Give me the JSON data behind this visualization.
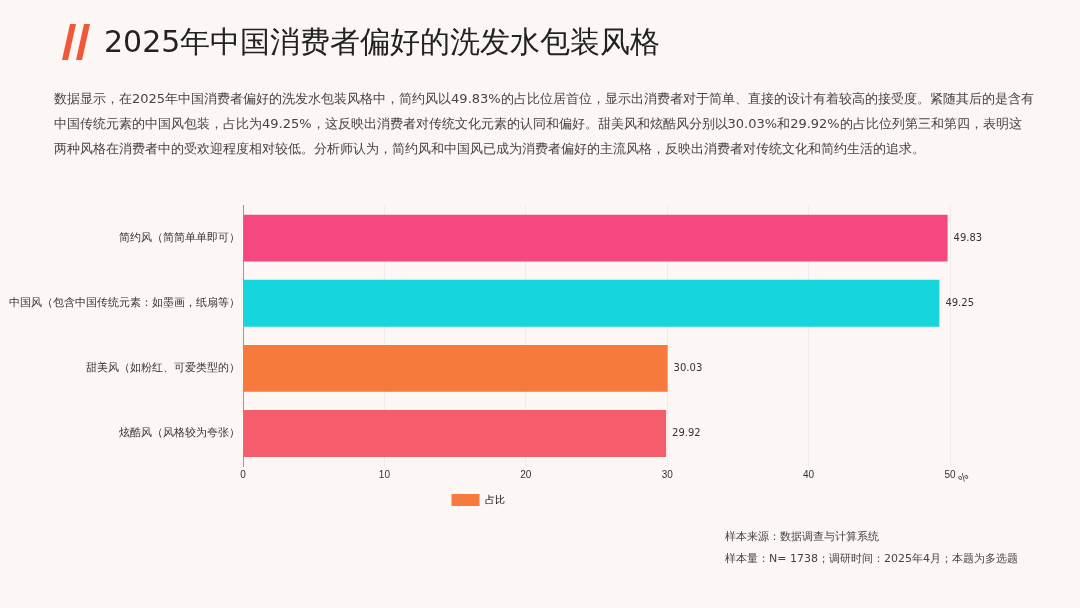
{
  "chart_data": {
    "type": "bar",
    "orientation": "horizontal",
    "title": "2025年中国消费者偏好的洗发水包装风格",
    "subtitle": "数据显示，在2025年中国消费者偏好的洗发水包装风格中，简约风以49.83%的占比位居首位，显示出消费者对于简单、直接的设计有着较高的接受度。紧随其后的是含有中国传统元素的中国风包装，占比为49.25%，这反映出消费者对传统文化元素的认同和偏好。甜美风和炫酷风分别以30.03%和29.92%的占比位列第三和第四，表明这两种风格在消费者中的受欢迎程度相对较低。分析师认为，简约风和中国风已成为消费者偏好的主流风格，反映出消费者对传统文化和简约生活的追求。",
    "categories": [
      "简约风（简简单单即可）",
      "中国风（包含中国传统元素：如墨画，纸扇等）",
      "甜美风（如粉红、可爱类型的）",
      "炫酷风（风格较为夸张）"
    ],
    "series": [
      {
        "name": "占比",
        "color": "#f57a3b",
        "colors": [
          "#f4487f",
          "#14d6dc",
          "#f57a3b",
          "#f55c6c"
        ],
        "values": [
          49.83,
          49.25,
          30.03,
          29.92
        ]
      }
    ],
    "xlim": [
      0,
      50
    ],
    "xticks": [
      0,
      10,
      20,
      30,
      40,
      50
    ],
    "xlabel": "%",
    "grid": "x",
    "legend": "bottom",
    "data_labels": true,
    "annotations": [
      "样本来源：数据调查与计算系统",
      "样本量：N= 1738；调研时间：2025年4月；本题为多选题"
    ]
  }
}
